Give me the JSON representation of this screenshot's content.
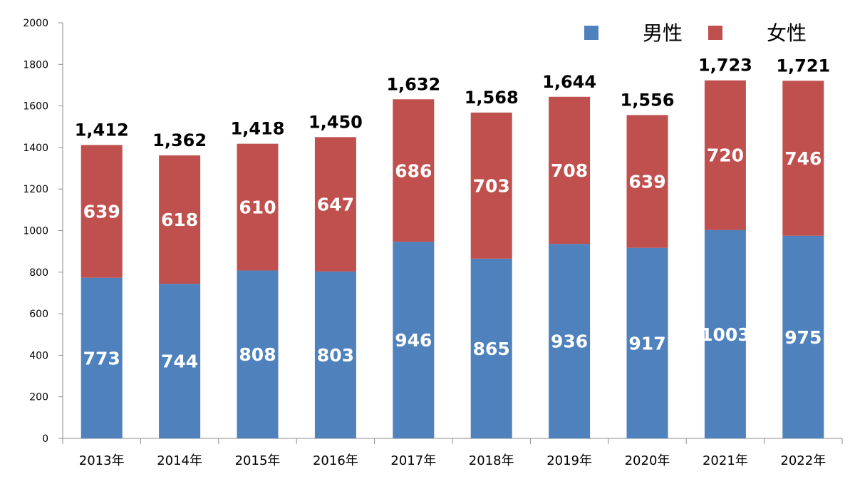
{
  "chart_data": {
    "type": "bar",
    "stacked": true,
    "categories": [
      "2013年",
      "2014年",
      "2015年",
      "2016年",
      "2017年",
      "2018年",
      "2019年",
      "2020年",
      "2021年",
      "2022年"
    ],
    "series": [
      {
        "name": "男性",
        "color": "#4f81bd",
        "values": [
          773,
          744,
          808,
          803,
          946,
          865,
          936,
          917,
          1003,
          975
        ]
      },
      {
        "name": "女性",
        "color": "#c0504d",
        "values": [
          639,
          618,
          610,
          647,
          686,
          703,
          708,
          639,
          720,
          746
        ]
      }
    ],
    "totals": [
      "1,412",
      "1,362",
      "1,418",
      "1,450",
      "1,632",
      "1,568",
      "1,644",
      "1,556",
      "1,723",
      "1,721"
    ],
    "ylim": [
      0,
      2000
    ],
    "yticks": [
      "0",
      "200",
      "400",
      "600",
      "800",
      "1000",
      "1200",
      "1400",
      "1600",
      "1800",
      "2000"
    ],
    "grid": false,
    "legend_position": "top-right",
    "title": "",
    "xlabel": "",
    "ylabel": ""
  }
}
